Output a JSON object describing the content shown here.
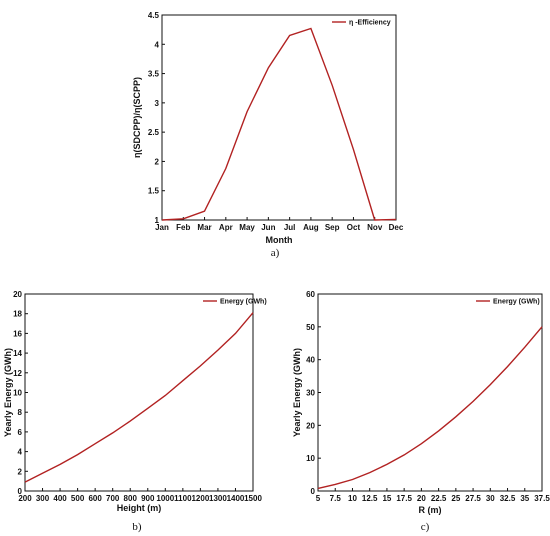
{
  "figure": {
    "panel_labels": [
      "a)",
      "b)",
      "c)"
    ]
  },
  "chart_data": [
    {
      "type": "line",
      "xlabel": "Month",
      "ylabel": "η(SDCPP)/η(SCPP)",
      "categories": [
        "Jan",
        "Feb",
        "Mar",
        "Apr",
        "May",
        "Jun",
        "Jul",
        "Aug",
        "Sep",
        "Oct",
        "Nov",
        "Dec"
      ],
      "ylim": [
        1,
        4.5
      ],
      "yticks": [
        1,
        1.5,
        2,
        2.5,
        3,
        3.5,
        4,
        4.5
      ],
      "ytick_labels": [
        "1",
        "1.5",
        "2",
        "2.5",
        "3",
        "3.5",
        "4",
        "4.5"
      ],
      "series": [
        {
          "name": "η -Efficiency",
          "color": "#b22222",
          "values": [
            1.0,
            1.02,
            1.15,
            1.88,
            2.85,
            3.6,
            4.15,
            4.27,
            3.3,
            2.2,
            1.0,
            1.01
          ]
        }
      ],
      "legend_position": "top-right",
      "grid": false
    },
    {
      "type": "line",
      "xlabel": "Height (m)",
      "ylabel": "Yearly Energy (GWh)",
      "xlim": [
        200,
        1500
      ],
      "ylim": [
        0,
        20
      ],
      "xticks": [
        200,
        300,
        400,
        500,
        600,
        700,
        800,
        900,
        1000,
        1100,
        1200,
        1300,
        1400,
        1500
      ],
      "xtick_labels": [
        "200",
        "300",
        "400",
        "500",
        "600",
        "700",
        "800",
        "900",
        "1000",
        "1100",
        "1200",
        "1300",
        "1400",
        "1500"
      ],
      "yticks": [
        0,
        2,
        4,
        6,
        8,
        10,
        12,
        14,
        16,
        18,
        20
      ],
      "ytick_labels": [
        "0",
        "2",
        "4",
        "6",
        "8",
        "10",
        "12",
        "14",
        "16",
        "18",
        "20"
      ],
      "series": [
        {
          "name": "Energy (GWh)",
          "color": "#b22222",
          "x": [
            200,
            300,
            400,
            500,
            600,
            700,
            800,
            900,
            1000,
            1100,
            1200,
            1300,
            1400,
            1500
          ],
          "y": [
            0.9,
            1.8,
            2.7,
            3.7,
            4.8,
            5.9,
            7.1,
            8.4,
            9.7,
            11.2,
            12.7,
            14.3,
            16.0,
            18.1
          ]
        }
      ],
      "legend_position": "top-right",
      "grid": false
    },
    {
      "type": "line",
      "xlabel": "R (m)",
      "ylabel": "Yearly Energy (GWh)",
      "xlim": [
        5,
        37.5
      ],
      "ylim": [
        0,
        60
      ],
      "xticks": [
        5,
        7.5,
        10,
        12.5,
        15,
        17.5,
        20,
        22.5,
        25,
        27.5,
        30,
        32.5,
        35,
        37.5
      ],
      "xtick_labels": [
        "5",
        "7.5",
        "10",
        "12.5",
        "15",
        "17.5",
        "20",
        "22.5",
        "25",
        "27.5",
        "30",
        "32.5",
        "35",
        "37.5"
      ],
      "yticks": [
        0,
        10,
        20,
        30,
        40,
        50,
        60
      ],
      "ytick_labels": [
        "0",
        "10",
        "20",
        "30",
        "40",
        "50",
        "60"
      ],
      "series": [
        {
          "name": "Energy (GWh)",
          "color": "#b22222",
          "x": [
            5,
            7.5,
            10,
            12.5,
            15,
            17.5,
            20,
            22.5,
            25,
            27.5,
            30,
            32.5,
            35,
            37.5
          ],
          "y": [
            0.8,
            2.0,
            3.5,
            5.6,
            8.1,
            11.0,
            14.4,
            18.3,
            22.6,
            27.3,
            32.4,
            37.9,
            43.8,
            50.0
          ]
        }
      ],
      "legend_position": "top-right",
      "grid": false
    }
  ]
}
